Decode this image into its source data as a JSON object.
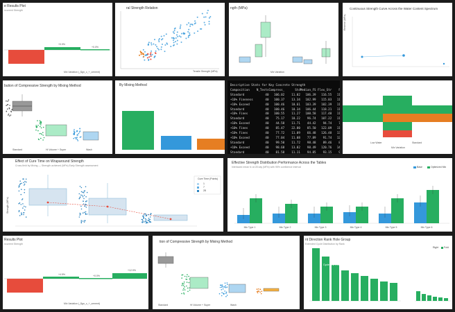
{
  "tiles": {
    "t1": {
      "title": "e Results Plot",
      "sub": "ncurrent Strength",
      "xlabel": "Mix Variation (_$gn_c_+_cement)",
      "bars": [
        "+0.9%",
        "+0.0%"
      ]
    },
    "t2": {
      "title": "ral Strength Relation",
      "xlabel": "Tensile Strength (MPa)"
    },
    "t3": {
      "title": "ngth (MPa)",
      "xlabel": "Mix Variation"
    },
    "t4": {
      "title": "Continuous Strength Curve Across the Water Content Spectrum",
      "ylabel": "Reserve (MPa)"
    },
    "t5": {
      "title": "bution of Compressive Strength by Mixing Method",
      "xlabels": [
        "Standard",
        "Hi Volume + Super",
        "Wash"
      ]
    },
    "t6": {
      "title": "By Mixing Method"
    },
    "t7": {
      "header": "Descriptive Stats for Key Concrete Strength",
      "columns": [
        "Composition",
        "N_Tests",
        "Compress_Mean",
        "Std",
        "Median_FS",
        "Flex_Str",
        "FS_75"
      ],
      "rows": [
        [
          "Standard",
          "40",
          "106.02",
          "11.02",
          "106.39",
          "116.55",
          "114.04"
        ],
        [
          "+10% Fineness",
          "40",
          "100.37",
          "13.34",
          "102.99",
          "115.03",
          "117.08"
        ],
        [
          "+10% Exceed",
          "40",
          "100.46",
          "10.61",
          "103.39",
          "102.39",
          "111.62"
        ],
        [
          "Standard",
          "40",
          "100.46",
          "10.34",
          "106.44",
          "118.21",
          "116.11"
        ],
        [
          "+10% Fines",
          "40",
          "100.55",
          "11.27",
          "100.58",
          "117.48",
          "116.97"
        ],
        [
          "Standard",
          "40",
          "75.17",
          "10.22",
          "96.74",
          "107.22",
          "116.32"
        ],
        [
          "+10% Exceed",
          "40",
          "44.58",
          "11.71",
          "44.42",
          "94.74",
          "77.06"
        ],
        [
          "+10% Fines",
          "40",
          "85.47",
          "22.80",
          "85.50",
          "122.09",
          "111.17"
        ],
        [
          "+10% Fines",
          "40",
          "77.72",
          "11.09",
          "66.48",
          "126.48",
          "135.78"
        ],
        [
          "+10% Exceed",
          "40",
          "77.04",
          "11.08",
          "77.89",
          "91.74",
          "122.62"
        ],
        [
          "Standard",
          "40",
          "99.50",
          "11.72",
          "98.48",
          "89.46",
          "81.16"
        ],
        [
          "+10% Exceed",
          "40",
          "98.68",
          "13.82",
          "98.49",
          "120.76",
          "144.30"
        ],
        [
          "Standard",
          "40",
          "81.58",
          "11.11",
          "94.85",
          "93.15",
          "92.84"
        ],
        [
          "Standard",
          "40",
          "108.03",
          "13.58",
          "108.70",
          "101.09",
          "144.31"
        ],
        [
          "+10% Fines",
          "40",
          "99.78",
          "11.32",
          "98.46",
          "94.81",
          "91.91"
        ],
        [
          "Standard",
          "40",
          "79.21",
          "10.48",
          "61.33",
          "96.28",
          "88.33"
        ],
        [
          "+10% Fines",
          "40",
          "100.63",
          "10.53",
          "100.87",
          "106.24",
          "114.51"
        ],
        [
          "Standard",
          "40",
          "98.81",
          "11.13",
          "98.31",
          "96.36",
          "97.58"
        ],
        [
          "+10% Exceed",
          "40",
          "84.46",
          "11.93",
          "84.33",
          "81.26",
          "106.39"
        ]
      ]
    },
    "t8": {
      "xlabel": "Mix Variation",
      "cats": [
        "Low Water",
        "Standard"
      ]
    },
    "t9": {
      "title": "Effect of Cure Time on Wraparound Strength",
      "sub": "Cross-field by Mixing — Strength achieved (MPa) Early Strength assessment",
      "ylabel": "Strength (MPa)",
      "legend_title": "Cure Time (Points)",
      "legend": [
        "1",
        "7",
        "28"
      ]
    },
    "t10": {
      "title": "Effective Strength Distribution Performance Across the Tables",
      "sub": "Interlaced mean fc at 28 day (MPa) with 95% confidence interval",
      "legend": [
        "Base",
        "Optimized Mix"
      ],
      "cats": [
        "Mix Type 1",
        "Mix Type 2",
        "Mix Type 3",
        "Mix Type 4",
        "Mix Type 5",
        "Mix Type 6"
      ]
    },
    "t11": {
      "title": "Results Plot",
      "sub": "ncurrent Strength",
      "xlabel": "Mix Variation (_$gn_c_+_cement)",
      "bars": [
        "+4.5%",
        "+0.0%",
        "+12.9%"
      ]
    },
    "t12": {
      "title": "tion of Compressive Strength by Mixing Method",
      "xlabels": [
        "Standard",
        "Hi Volume + Super",
        "Wash"
      ]
    },
    "t13": {
      "title": "nt Direction Rank Hole Group",
      "sub": "Extended Cycle Distribution by Rank",
      "legend": "Right",
      "side_title": "Fold",
      "bar_label": "Cycle Test Results"
    }
  },
  "colors": {
    "red": "#e74c3c",
    "green": "#27ae60",
    "blue": "#3498db",
    "orange": "#e67e22",
    "gray": "#95a5a6"
  }
}
